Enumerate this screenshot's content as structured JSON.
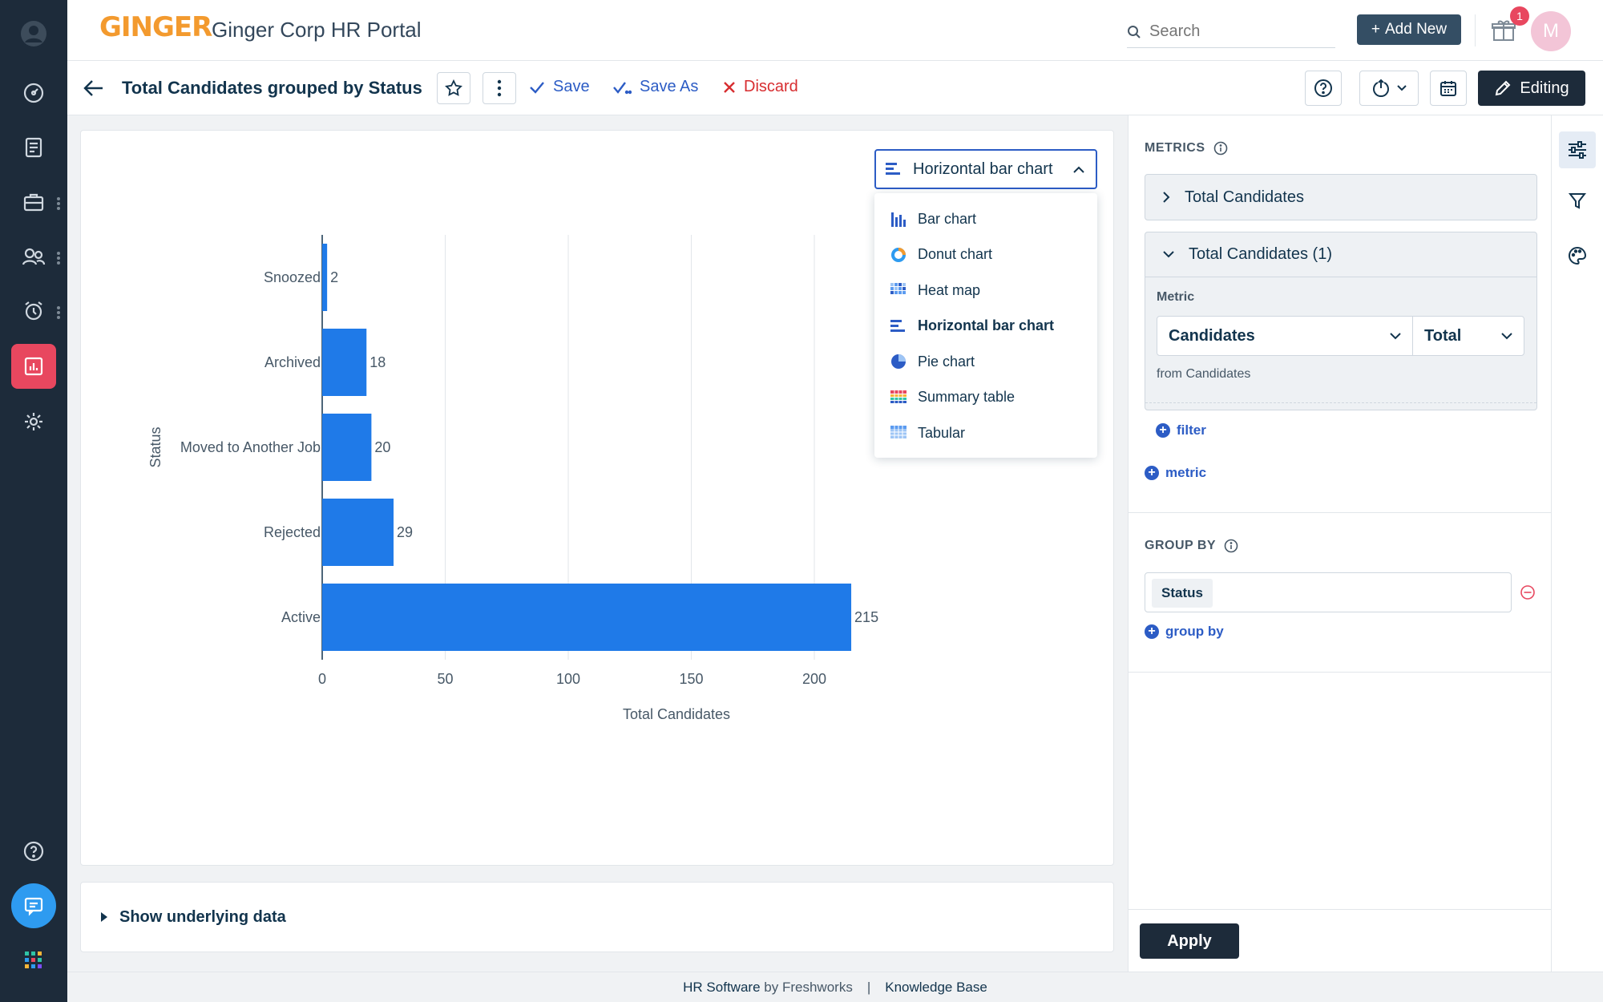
{
  "app": {
    "logo": "GINGER",
    "title": "Ginger Corp HR Portal"
  },
  "header": {
    "search_placeholder": "Search",
    "add_new": "Add New",
    "notification_count": "1",
    "avatar_initial": "M"
  },
  "report": {
    "title": "Total Candidates grouped by Status",
    "save": "Save",
    "save_as": "Save As",
    "discard": "Discard",
    "editing": "Editing"
  },
  "chart_type": {
    "selected": "Horizontal bar chart",
    "options": [
      "Bar chart",
      "Donut chart",
      "Heat map",
      "Horizontal bar chart",
      "Pie chart",
      "Summary table",
      "Tabular"
    ]
  },
  "chart_data": {
    "type": "bar",
    "orientation": "horizontal",
    "categories": [
      "Snoozed",
      "Archived",
      "Moved to Another Job",
      "Rejected",
      "Active"
    ],
    "values": [
      2,
      18,
      20,
      29,
      215
    ],
    "xlabel": "Total Candidates",
    "ylabel": "Status",
    "xlim": [
      0,
      215
    ],
    "x_ticks": [
      0,
      50,
      100,
      150,
      200
    ],
    "bar_color": "#1f7ae8",
    "grid": true
  },
  "underlying": {
    "label": "Show underlying data"
  },
  "panel": {
    "metrics_heading": "METRICS",
    "metric_collapsed": "Total Candidates",
    "metric_expanded": "Total Candidates (1)",
    "metric_label": "Metric",
    "metric_value": "Candidates",
    "aggregate_value": "Total",
    "from_text": "from Candidates",
    "filter_link": "filter",
    "metric_link": "metric",
    "group_by_heading": "GROUP BY",
    "group_by_value": "Status",
    "group_by_link": "group by",
    "apply": "Apply"
  },
  "footer": {
    "software": "HR Software",
    "by": "by",
    "company": "Freshworks",
    "separator": "|",
    "kb": "Knowledge Base"
  },
  "colors": {
    "accent": "#2c5cc5",
    "danger": "#d72d30",
    "nav_bg": "#1d2b3a",
    "nav_active": "#e8475f",
    "logo": "#f39a2e"
  }
}
